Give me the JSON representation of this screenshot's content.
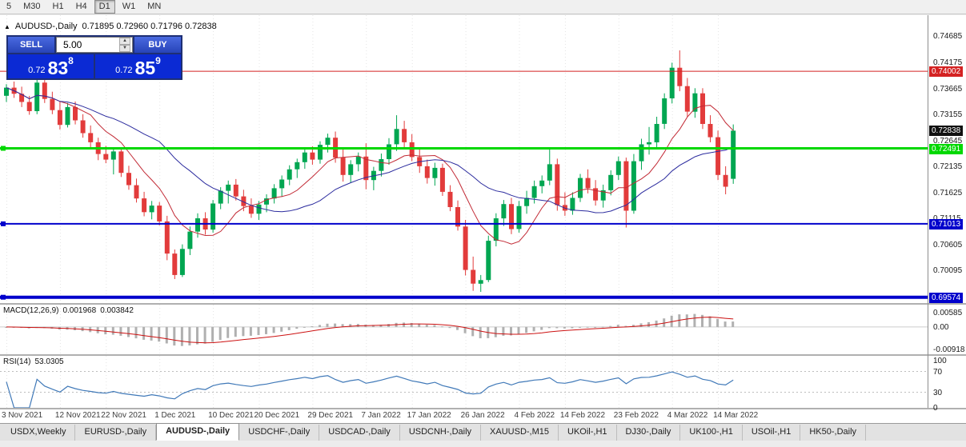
{
  "toolbar": {
    "timeframes": [
      "5",
      "M30",
      "H1",
      "H4",
      "D1",
      "W1",
      "MN"
    ],
    "active": "D1"
  },
  "chart": {
    "title": "AUDUSD-,Daily",
    "ohlc_text": "0.71895 0.72960 0.71796 0.72838"
  },
  "trade_panel": {
    "sell_label": "SELL",
    "buy_label": "BUY",
    "volume": "5.00",
    "bid_prefix": "0.72",
    "bid_big": "83",
    "bid_sup": "8",
    "ask_prefix": "0.72",
    "ask_big": "85",
    "ask_sup": "9"
  },
  "colors": {
    "candle_up": "#00a651",
    "candle_down": "#e23b3b",
    "macd_hist": "#b0b0b0",
    "macd_signal": "#cc1111",
    "rsi_line": "#4079b8",
    "badge_black": "#111111"
  },
  "chart_data": {
    "type": "candlestick",
    "symbol": "AUDUSD",
    "timeframe": "Daily",
    "ylim": [
      0.6946,
      0.751
    ],
    "axis_labels": [
      "0.74685",
      "0.74175",
      "0.73665",
      "0.73155",
      "0.72645",
      "0.72135",
      "0.71625",
      "0.71115",
      "0.70605",
      "0.70095",
      "0.69585"
    ],
    "current_price": {
      "label": "0.72838",
      "value": 0.72838
    },
    "levels": [
      {
        "label": "0.74002",
        "value": 0.74002,
        "color": "#d42222",
        "width": 1,
        "handles": false
      },
      {
        "label": "0.72491",
        "value": 0.72491,
        "color": "#00d800",
        "width": 3,
        "handles": true
      },
      {
        "label": "0.71013",
        "value": 0.71013,
        "color": "#0000cc",
        "width": 2,
        "handles": true
      },
      {
        "label": "0.69574",
        "value": 0.69574,
        "color": "#0000cc",
        "width": 4,
        "handles": true
      }
    ],
    "moving_averages": [
      {
        "name": "fast",
        "period": 8,
        "color": "#c22a35"
      },
      {
        "name": "slow",
        "period": 21,
        "color": "#2b2b9e"
      }
    ],
    "date_labels": [
      {
        "label": "3 Nov 2021",
        "i": 0
      },
      {
        "label": "12 Nov 2021",
        "i": 7
      },
      {
        "label": "22 Nov 2021",
        "i": 13
      },
      {
        "label": "1 Dec 2021",
        "i": 20
      },
      {
        "label": "10 Dec 2021",
        "i": 27
      },
      {
        "label": "20 Dec 2021",
        "i": 33
      },
      {
        "label": "29 Dec 2021",
        "i": 40
      },
      {
        "label": "7 Jan 2022",
        "i": 47
      },
      {
        "label": "17 Jan 2022",
        "i": 53
      },
      {
        "label": "26 Jan 2022",
        "i": 60
      },
      {
        "label": "4 Feb 2022",
        "i": 67
      },
      {
        "label": "14 Feb 2022",
        "i": 73
      },
      {
        "label": "23 Feb 2022",
        "i": 80
      },
      {
        "label": "4 Mar 2022",
        "i": 87
      },
      {
        "label": "14 Mar 2022",
        "i": 93
      }
    ],
    "candles": [
      [
        0.7352,
        0.7375,
        0.734,
        0.7368
      ],
      [
        0.7368,
        0.738,
        0.7348,
        0.7356
      ],
      [
        0.7356,
        0.737,
        0.733,
        0.734
      ],
      [
        0.734,
        0.7352,
        0.7315,
        0.7322
      ],
      [
        0.7322,
        0.7385,
        0.7316,
        0.7378
      ],
      [
        0.7378,
        0.7383,
        0.7338,
        0.7346
      ],
      [
        0.7346,
        0.736,
        0.7316,
        0.7324
      ],
      [
        0.7324,
        0.7342,
        0.7286,
        0.7295
      ],
      [
        0.7295,
        0.7338,
        0.729,
        0.733
      ],
      [
        0.733,
        0.7341,
        0.7296,
        0.7304
      ],
      [
        0.7304,
        0.7316,
        0.727,
        0.7279
      ],
      [
        0.7279,
        0.7294,
        0.725,
        0.7261
      ],
      [
        0.7261,
        0.727,
        0.7226,
        0.7238
      ],
      [
        0.7238,
        0.7254,
        0.722,
        0.7227
      ],
      [
        0.7227,
        0.7248,
        0.7198,
        0.7243
      ],
      [
        0.7243,
        0.725,
        0.7193,
        0.7201
      ],
      [
        0.7201,
        0.7215,
        0.7168,
        0.7177
      ],
      [
        0.7177,
        0.719,
        0.7143,
        0.7151
      ],
      [
        0.7151,
        0.7164,
        0.7116,
        0.7124
      ],
      [
        0.7124,
        0.7146,
        0.711,
        0.7137
      ],
      [
        0.7137,
        0.7144,
        0.7098,
        0.7106
      ],
      [
        0.7106,
        0.7117,
        0.703,
        0.7043
      ],
      [
        0.7043,
        0.7051,
        0.6993,
        0.7001
      ],
      [
        0.7001,
        0.7061,
        0.6997,
        0.7052
      ],
      [
        0.7052,
        0.7096,
        0.704,
        0.7086
      ],
      [
        0.7086,
        0.7122,
        0.7074,
        0.7112
      ],
      [
        0.7112,
        0.7124,
        0.708,
        0.709
      ],
      [
        0.709,
        0.7148,
        0.7084,
        0.7141
      ],
      [
        0.7141,
        0.7173,
        0.713,
        0.7166
      ],
      [
        0.7166,
        0.7186,
        0.7141,
        0.7178
      ],
      [
        0.7178,
        0.7189,
        0.7147,
        0.7155
      ],
      [
        0.7155,
        0.7168,
        0.7126,
        0.7136
      ],
      [
        0.7136,
        0.7151,
        0.7113,
        0.7121
      ],
      [
        0.7121,
        0.7146,
        0.7109,
        0.7139
      ],
      [
        0.7139,
        0.7159,
        0.7124,
        0.7151
      ],
      [
        0.7151,
        0.7179,
        0.7141,
        0.7171
      ],
      [
        0.7171,
        0.7196,
        0.7154,
        0.7188
      ],
      [
        0.7188,
        0.7216,
        0.7177,
        0.7208
      ],
      [
        0.7208,
        0.7229,
        0.7191,
        0.7222
      ],
      [
        0.7222,
        0.7249,
        0.7209,
        0.7241
      ],
      [
        0.7241,
        0.7253,
        0.7217,
        0.7227
      ],
      [
        0.7227,
        0.7263,
        0.7219,
        0.7256
      ],
      [
        0.7256,
        0.7278,
        0.7241,
        0.727
      ],
      [
        0.727,
        0.7282,
        0.7221,
        0.7231
      ],
      [
        0.7231,
        0.7247,
        0.7184,
        0.7197
      ],
      [
        0.7197,
        0.7226,
        0.7181,
        0.7218
      ],
      [
        0.7218,
        0.7241,
        0.7204,
        0.7233
      ],
      [
        0.7233,
        0.7259,
        0.7169,
        0.7187
      ],
      [
        0.7187,
        0.7213,
        0.7167,
        0.7205
      ],
      [
        0.7205,
        0.7239,
        0.7194,
        0.7228
      ],
      [
        0.7228,
        0.7269,
        0.7217,
        0.7257
      ],
      [
        0.7257,
        0.7314,
        0.7244,
        0.7287
      ],
      [
        0.7287,
        0.7303,
        0.7251,
        0.7261
      ],
      [
        0.7261,
        0.7277,
        0.7224,
        0.7232
      ],
      [
        0.7232,
        0.7247,
        0.7201,
        0.7214
      ],
      [
        0.7214,
        0.7227,
        0.718,
        0.7191
      ],
      [
        0.7191,
        0.7221,
        0.7176,
        0.7211
      ],
      [
        0.7211,
        0.7219,
        0.7156,
        0.7164
      ],
      [
        0.7164,
        0.7177,
        0.7126,
        0.7134
      ],
      [
        0.7134,
        0.7147,
        0.7088,
        0.7096
      ],
      [
        0.7096,
        0.7109,
        0.7,
        0.7011
      ],
      [
        0.7011,
        0.7037,
        0.697,
        0.6984
      ],
      [
        0.6984,
        0.7001,
        0.6968,
        0.6991
      ],
      [
        0.6991,
        0.7078,
        0.6987,
        0.7068
      ],
      [
        0.7068,
        0.7122,
        0.7057,
        0.7112
      ],
      [
        0.7112,
        0.7148,
        0.7097,
        0.714
      ],
      [
        0.714,
        0.7152,
        0.7081,
        0.7091
      ],
      [
        0.7091,
        0.7146,
        0.7084,
        0.7136
      ],
      [
        0.7136,
        0.7166,
        0.7121,
        0.7152
      ],
      [
        0.7152,
        0.7186,
        0.7141,
        0.7175
      ],
      [
        0.7175,
        0.7196,
        0.7161,
        0.7186
      ],
      [
        0.7186,
        0.7248,
        0.7177,
        0.7218
      ],
      [
        0.7218,
        0.7229,
        0.7127,
        0.7138
      ],
      [
        0.7138,
        0.7163,
        0.7117,
        0.7127
      ],
      [
        0.7127,
        0.7163,
        0.7119,
        0.7152
      ],
      [
        0.7152,
        0.7199,
        0.7144,
        0.7191
      ],
      [
        0.7191,
        0.7208,
        0.7161,
        0.7171
      ],
      [
        0.7171,
        0.7187,
        0.7137,
        0.7147
      ],
      [
        0.7147,
        0.7178,
        0.7133,
        0.7167
      ],
      [
        0.7167,
        0.7206,
        0.7157,
        0.7197
      ],
      [
        0.7197,
        0.7233,
        0.7187,
        0.7224
      ],
      [
        0.7224,
        0.7231,
        0.7094,
        0.7127
      ],
      [
        0.7127,
        0.7238,
        0.7121,
        0.7224
      ],
      [
        0.7224,
        0.7268,
        0.7207,
        0.7257
      ],
      [
        0.7257,
        0.7291,
        0.7237,
        0.7261
      ],
      [
        0.7261,
        0.7311,
        0.7251,
        0.7297
      ],
      [
        0.7297,
        0.7357,
        0.7287,
        0.7347
      ],
      [
        0.7347,
        0.7417,
        0.7337,
        0.7407
      ],
      [
        0.7407,
        0.7441,
        0.7361,
        0.7371
      ],
      [
        0.7371,
        0.7387,
        0.7311,
        0.7321
      ],
      [
        0.7321,
        0.7367,
        0.7309,
        0.7357
      ],
      [
        0.7357,
        0.7367,
        0.7287,
        0.7297
      ],
      [
        0.7297,
        0.7314,
        0.7261,
        0.7271
      ],
      [
        0.7271,
        0.7284,
        0.7187,
        0.7197
      ],
      [
        0.7197,
        0.7214,
        0.7159,
        0.7174
      ],
      [
        0.71895,
        0.7296,
        0.71796,
        0.72838
      ]
    ]
  },
  "macd_panel": {
    "label": "MACD(12,26,9)",
    "value_main": "0.001968",
    "value_signal": "0.003842",
    "axis_labels": [
      {
        "label": "0.00585",
        "value": 0.00585
      },
      {
        "label": "0.00",
        "value": 0
      },
      {
        "label": "-0.00918",
        "value": -0.00918
      }
    ]
  },
  "rsi_panel": {
    "label": "RSI(14)",
    "value": "53.0305",
    "levels": [
      70,
      30
    ],
    "axis_labels": [
      {
        "label": "100",
        "value": 100
      },
      {
        "label": "70",
        "value": 70
      },
      {
        "label": "30",
        "value": 30
      },
      {
        "label": "0",
        "value": 0
      }
    ]
  },
  "tabs": {
    "active": "AUDUSD-,Daily",
    "items": [
      "USDX,Weekly",
      "EURUSD-,Daily",
      "AUDUSD-,Daily",
      "USDCHF-,Daily",
      "USDCAD-,Daily",
      "USDCNH-,Daily",
      "XAUUSD-,M15",
      "UKOil-,H1",
      "DJ30-,Daily",
      "UK100-,H1",
      "USOil-,H1",
      "HK50-,Daily"
    ]
  }
}
